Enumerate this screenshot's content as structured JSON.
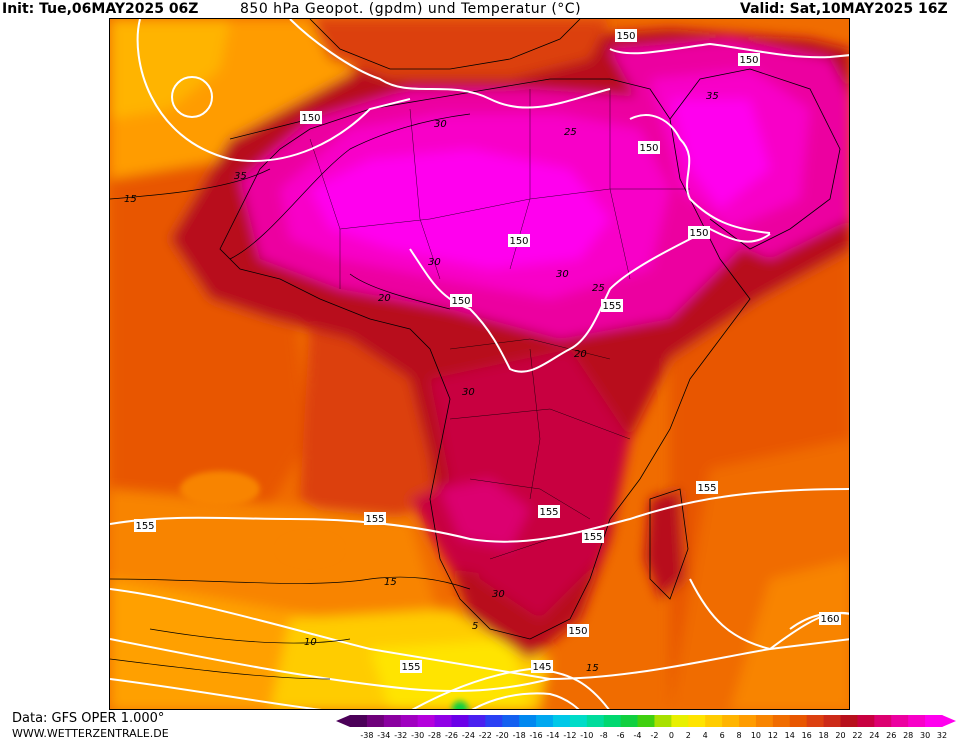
{
  "header": {
    "init": "Init: Tue,06MAY2025 06Z",
    "title": "850 hPa Geopot. (gpdm) und Temperatur (°C)",
    "valid": "Valid: Sat,10MAY2025 16Z"
  },
  "footer": {
    "source": "Data: GFS OPER 1.000°",
    "website": "WWW.WETTERZENTRALE.DE"
  },
  "map": {
    "geopotential_labels": [
      "150",
      "150",
      "150",
      "150",
      "150",
      "150",
      "150",
      "155",
      "155",
      "155",
      "155",
      "155",
      "155",
      "160",
      "150",
      "145"
    ],
    "temperature_labels": [
      "15",
      "35",
      "30",
      "25",
      "35",
      "20",
      "30",
      "30",
      "25",
      "20",
      "30",
      "15",
      "10",
      "5",
      "15",
      "30"
    ]
  },
  "legend": {
    "ticks": [
      "-38",
      "-34",
      "-32",
      "-30",
      "-28",
      "-26",
      "-24",
      "-22",
      "-20",
      "-18",
      "-16",
      "-14",
      "-12",
      "-10",
      "-8",
      "-6",
      "-4",
      "-2",
      "0",
      "2",
      "4",
      "6",
      "8",
      "10",
      "12",
      "14",
      "16",
      "18",
      "20",
      "22",
      "24",
      "26",
      "28",
      "30",
      "32"
    ],
    "colors": [
      "#4b0058",
      "#6e007a",
      "#8a00a0",
      "#a000c0",
      "#b400dc",
      "#9000e6",
      "#6a00e8",
      "#4a20f0",
      "#2a40f4",
      "#1460f0",
      "#0088f0",
      "#00a8f0",
      "#00c8e8",
      "#00dcc8",
      "#00dc9c",
      "#00d870",
      "#10d040",
      "#40d010",
      "#a8e000",
      "#e8f000",
      "#ffe400",
      "#ffcc00",
      "#ffb400",
      "#ff9c00",
      "#f88400",
      "#f06c00",
      "#e85600",
      "#dc4010",
      "#cc2a18",
      "#b8101c",
      "#c80040",
      "#dc0070",
      "#ec00a0",
      "#f800c8",
      "#ff00ee"
    ]
  }
}
